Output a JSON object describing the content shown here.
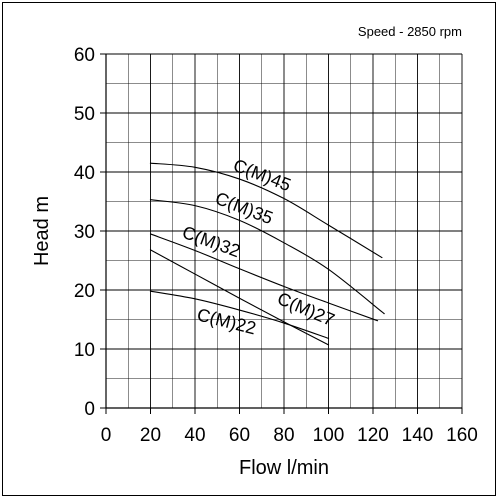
{
  "chart_data": {
    "type": "line",
    "subtitle": "Speed - 2850 rpm",
    "xlabel": "Flow l/min",
    "ylabel": "Head m",
    "xlim": [
      0,
      160
    ],
    "ylim": [
      0,
      60
    ],
    "x_ticks": [
      0,
      20,
      40,
      60,
      80,
      100,
      120,
      140,
      160
    ],
    "y_ticks": [
      0,
      10,
      20,
      30,
      40,
      50,
      60
    ],
    "grid": true,
    "series": [
      {
        "name": "C(M)45",
        "x": [
          20,
          40,
          60,
          80,
          100,
          124
        ],
        "y": [
          41.5,
          40.8,
          38.8,
          35.5,
          31,
          25.5
        ]
      },
      {
        "name": "C(M)35",
        "x": [
          20,
          40,
          60,
          80,
          100,
          125
        ],
        "y": [
          35.3,
          34.3,
          31.8,
          28,
          23.5,
          16
        ]
      },
      {
        "name": "C(M)32",
        "x": [
          20,
          40,
          60,
          80,
          100,
          122
        ],
        "y": [
          29.5,
          26.7,
          23.6,
          20.6,
          17.8,
          14.8
        ]
      },
      {
        "name": "C(M)27",
        "x": [
          20,
          40,
          60,
          80,
          100
        ],
        "y": [
          26.8,
          22.7,
          18.6,
          14.6,
          10.7
        ]
      },
      {
        "name": "C(M)22",
        "x": [
          20,
          40,
          60,
          80,
          100
        ],
        "y": [
          19.8,
          18.5,
          16.6,
          14.4,
          11.8
        ]
      }
    ]
  }
}
